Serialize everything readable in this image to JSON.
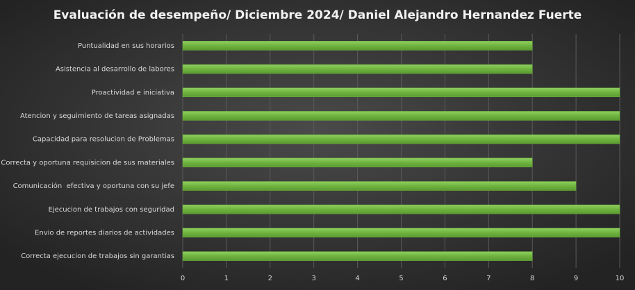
{
  "chart_data": {
    "type": "barh",
    "title": "Evaluación de desempeño/ Diciembre 2024/ Daniel Alejandro Hernandez Fuerte",
    "categories": [
      "Puntualidad en sus horarios",
      "Asistencia al desarrollo de labores",
      "Proactividad e iniciativa",
      "Atencion y seguimiento de tareas asignadas",
      "Capacidad para resolucion de Problemas",
      "Correcta y oportuna requisicion de sus materiales",
      "Comunicación  efectiva y oportuna con su jefe",
      "Ejecucion de trabajos con seguridad",
      "Envio de reportes diarios de actividades",
      "Correcta ejecucion de trabajos sin garantias"
    ],
    "values": [
      8,
      8,
      10,
      10,
      10,
      8,
      9,
      10,
      10,
      8
    ],
    "color": "#6fb33f",
    "xlim": [
      0,
      10
    ],
    "xticks": [
      0,
      1,
      2,
      3,
      4,
      5,
      6,
      7,
      8,
      9,
      10
    ],
    "grid": true
  }
}
